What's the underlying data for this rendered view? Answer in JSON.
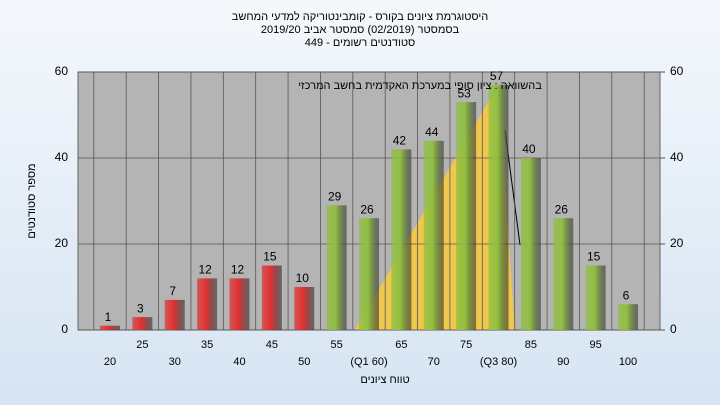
{
  "chart_data": {
    "type": "bar",
    "title": "היסטוגרמת ציונים בקורס - קומבינטוריקה למדעי המחשב",
    "subtitle": "בסמסטר  (02/2019)  סמסטר אביב 2019/20",
    "subtitle2": "סטודנטים רשומים - 449",
    "annotation": "בהשוואה : ציון סופי במערכת האקדמית בחשב המרכזי",
    "xlabel": "טווח ציונים",
    "ylabel": "מספר סטודנטים",
    "categories": [
      "20",
      "25",
      "30",
      "35",
      "40",
      "45",
      "50",
      "55",
      "(Q1 60)",
      "65",
      "70",
      "75",
      "(Q3 80)",
      "85",
      "90",
      "95",
      "100"
    ],
    "values": [
      1,
      3,
      7,
      12,
      12,
      15,
      10,
      29,
      26,
      42,
      44,
      53,
      57,
      40,
      26,
      15,
      6
    ],
    "colors": [
      "#e03030",
      "#e03030",
      "#e03030",
      "#e03030",
      "#e03030",
      "#e03030",
      "#e03030",
      "#8fbf40",
      "#8fbf40",
      "#8fbf40",
      "#8fbf40",
      "#8fbf40",
      "#8fbf40",
      "#8fbf40",
      "#8fbf40",
      "#8fbf40",
      "#8fbf40"
    ],
    "ylim": [
      0,
      60
    ],
    "yticks": [
      0,
      20,
      40,
      60
    ],
    "y2lim": [
      0,
      60
    ],
    "y2ticks": [
      0,
      20,
      40,
      60
    ],
    "grid": true
  }
}
